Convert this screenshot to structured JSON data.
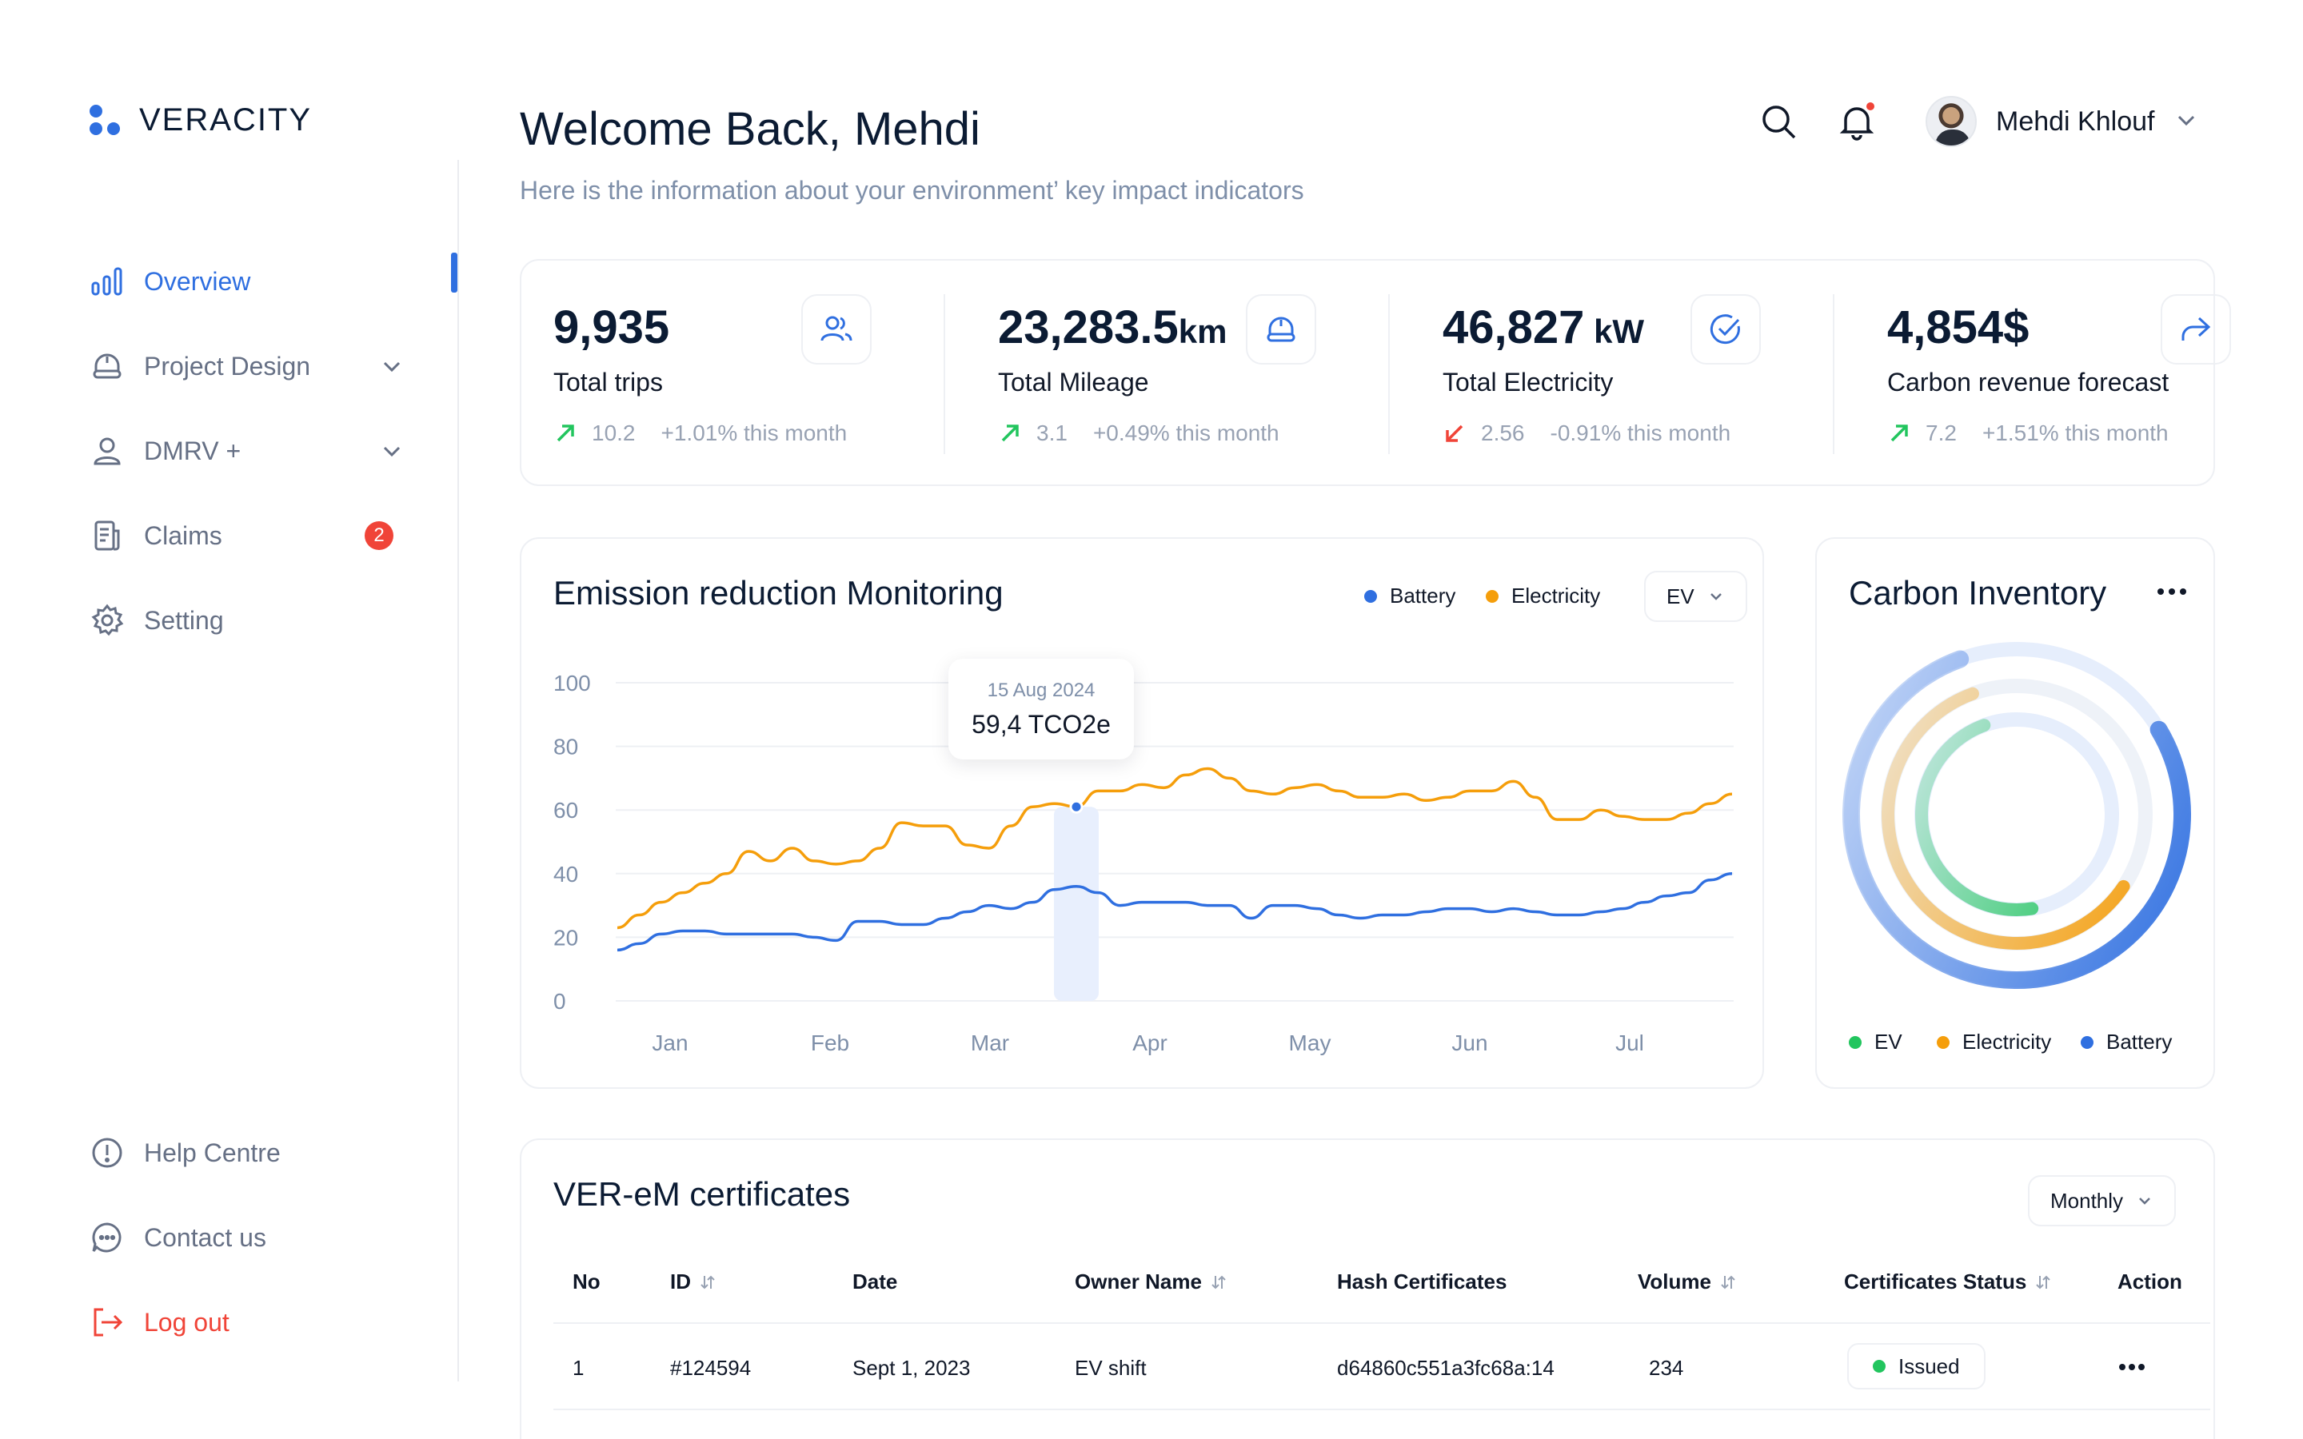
{
  "brand": {
    "name": "VERACITY",
    "color": "#2F6FE0"
  },
  "nav": {
    "items": [
      {
        "label": "Overview",
        "icon": "bar-chart-icon",
        "active": true
      },
      {
        "label": "Project Design",
        "icon": "helmet-icon",
        "dropdown": true
      },
      {
        "label": "DMRV +",
        "icon": "user-icon",
        "dropdown": true
      },
      {
        "label": "Claims",
        "icon": "document-icon",
        "badge": "2"
      },
      {
        "label": "Setting",
        "icon": "gear-icon"
      }
    ],
    "bottom": [
      {
        "label": "Help Centre",
        "icon": "info-icon"
      },
      {
        "label": "Contact us",
        "icon": "chat-icon"
      },
      {
        "label": "Log out",
        "icon": "logout-icon"
      }
    ]
  },
  "header": {
    "welcome": "Welcome Back, Mehdi",
    "subtitle": "Here is the information about your environment’ key impact indicators",
    "user_name": "Mehdi Khlouf"
  },
  "stats": [
    {
      "value": "9,935",
      "unit": "",
      "label": "Total trips",
      "trend_value": "10.2",
      "trend_text": "+1.01% this month",
      "direction": "up",
      "icon": "users-icon"
    },
    {
      "value": "23,283.5",
      "unit": "km",
      "label": "Total Mileage",
      "trend_value": "3.1",
      "trend_text": "+0.49% this month",
      "direction": "up",
      "icon": "helmet-icon"
    },
    {
      "value": "46,827",
      "unit": " kW",
      "label": "Total Electricity",
      "trend_value": "2.56",
      "trend_text": "-0.91% this month",
      "direction": "down",
      "icon": "check-circle-icon"
    },
    {
      "value": "4,854$",
      "unit": "",
      "label": "Carbon revenue forecast",
      "trend_value": "7.2",
      "trend_text": "+1.51% this month",
      "direction": "up",
      "icon": "share-icon"
    }
  ],
  "emission": {
    "title": "Emission reduction Monitoring",
    "legend": [
      {
        "name": "Battery",
        "color": "#2F6FE0"
      },
      {
        "name": "Electricity",
        "color": "#F59E0B"
      }
    ],
    "filter": "EV",
    "tooltip": {
      "date": "15 Aug 2024",
      "value": "59,4 TCO2e"
    }
  },
  "chart_data": {
    "type": "line",
    "x_ticks": [
      "Jan",
      "Feb",
      "Mar",
      "Apr",
      "May",
      "Jun",
      "Jul"
    ],
    "y_ticks": [
      "100",
      "80",
      "60",
      "40",
      "20",
      "0"
    ],
    "ylim": [
      0,
      100
    ],
    "grid": true,
    "legend_placement": "top-right",
    "series": [
      {
        "name": "Electricity",
        "color": "#F59E0B",
        "values": [
          23,
          27,
          31,
          34,
          37,
          40,
          47,
          44,
          48,
          44,
          43,
          44,
          48,
          56,
          55,
          55,
          49,
          48,
          55,
          61,
          62,
          61,
          66,
          66,
          68,
          67,
          71,
          73,
          70,
          66,
          65,
          67,
          68,
          66,
          64,
          64,
          65,
          63,
          64,
          66,
          66,
          69,
          64,
          57,
          57,
          60,
          58,
          57,
          57,
          59,
          62,
          65
        ]
      },
      {
        "name": "Battery",
        "color": "#2F6FE0",
        "values": [
          16,
          18,
          21,
          22,
          22,
          21,
          21,
          21,
          21,
          20,
          19,
          25,
          25,
          24,
          24,
          26,
          28,
          30,
          29,
          31,
          35,
          36,
          34,
          30,
          31,
          31,
          31,
          30,
          30,
          26,
          30,
          30,
          29,
          27,
          26,
          27,
          27,
          28,
          29,
          29,
          28,
          29,
          28,
          27,
          27,
          28,
          29,
          31,
          33,
          34,
          38,
          40
        ]
      }
    ],
    "highlight": {
      "x_label": "Mar",
      "date": "15 Aug 2024",
      "value": 59.4
    }
  },
  "carbon": {
    "title": "Carbon Inventory",
    "legend": [
      {
        "name": "EV",
        "color": "#22C55E"
      },
      {
        "name": "Electricity",
        "color": "#F59E0B"
      },
      {
        "name": "Battery",
        "color": "#2F6FE0"
      }
    ],
    "rings": [
      {
        "name": "Battery",
        "color": "#2F6FE0",
        "fraction": 0.78
      },
      {
        "name": "Electricity",
        "color": "#F59E0B",
        "fraction": 0.6
      },
      {
        "name": "EV",
        "color": "#22C55E",
        "fraction": 0.47
      }
    ]
  },
  "certificates": {
    "title": "VER-eM certificates",
    "filter": "Monthly",
    "columns": [
      "No",
      "ID",
      "Date",
      "Owner Name",
      "Hash Certificates",
      "Volume",
      "Certificates Status",
      "Action"
    ],
    "rows": [
      {
        "no": "1",
        "id": "#124594",
        "date": "Sept 1, 2023",
        "owner": "EV shift",
        "hash": "d64860c551a3fc68a:14",
        "volume": "234",
        "status": "Issued"
      }
    ]
  }
}
